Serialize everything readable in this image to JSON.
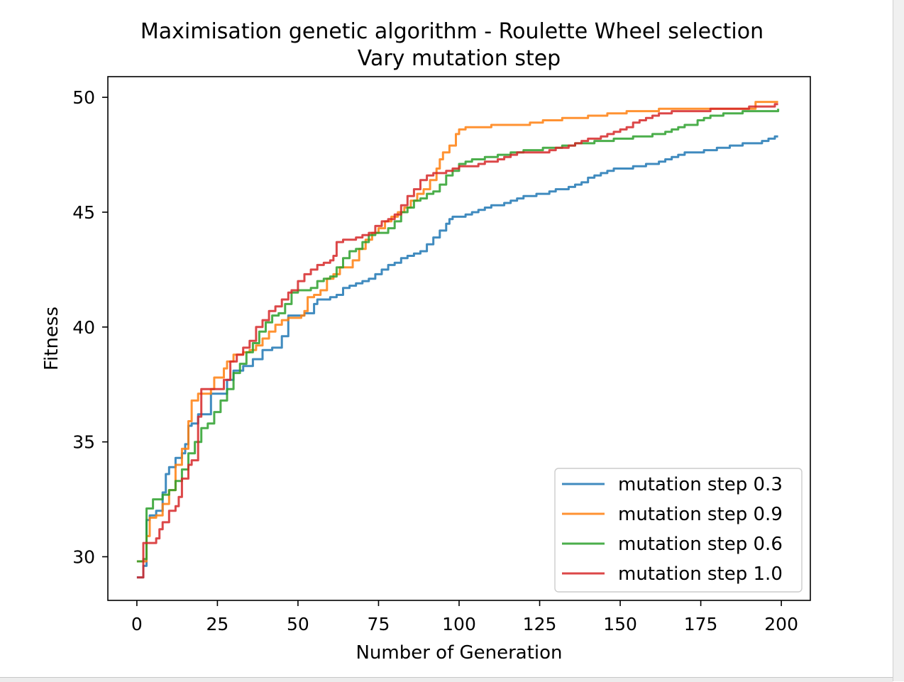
{
  "chart_data": {
    "type": "line",
    "title": "Maximisation genetic algorithm - Roulette Wheel selection",
    "subtitle": "Vary mutation step",
    "xlabel": "Number of Generation",
    "ylabel": "Fitness",
    "xlim": [
      -9,
      209
    ],
    "ylim": [
      28.1,
      50.9
    ],
    "xticks": [
      0,
      25,
      50,
      75,
      100,
      125,
      150,
      175,
      200
    ],
    "yticks": [
      30,
      35,
      40,
      45,
      50
    ],
    "grid": false,
    "legend_position": "lower right",
    "series": [
      {
        "name": "mutation step 0.3",
        "color": "#1f77b4",
        "x": [
          0,
          2,
          3,
          4,
          6,
          8,
          9,
          10,
          12,
          14,
          15,
          16,
          17,
          19,
          21,
          23,
          25,
          28,
          30,
          33,
          36,
          39,
          42,
          45,
          47,
          48,
          50,
          52,
          55,
          56,
          58,
          60,
          62,
          64,
          66,
          68,
          70,
          72,
          74,
          76,
          78,
          80,
          82,
          84,
          86,
          88,
          90,
          92,
          94,
          96,
          97,
          98,
          100,
          102,
          104,
          106,
          108,
          110,
          112,
          114,
          116,
          118,
          120,
          122,
          124,
          126,
          128,
          130,
          132,
          134,
          136,
          138,
          140,
          142,
          144,
          146,
          148,
          150,
          152,
          154,
          156,
          158,
          160,
          162,
          164,
          166,
          168,
          170,
          172,
          174,
          176,
          178,
          180,
          182,
          184,
          186,
          188,
          190,
          192,
          194,
          196,
          198,
          199
        ],
        "y": [
          29.1,
          29.6,
          31.6,
          31.8,
          32.0,
          32.8,
          33.6,
          33.9,
          34.3,
          34.5,
          34.9,
          35.7,
          35.8,
          36.2,
          36.2,
          37.1,
          37.1,
          37.7,
          38.1,
          38.3,
          38.6,
          39.0,
          39.1,
          39.6,
          40.5,
          40.5,
          40.5,
          40.6,
          41.0,
          41.2,
          41.2,
          41.3,
          41.4,
          41.7,
          41.8,
          41.9,
          42.0,
          42.1,
          42.3,
          42.5,
          42.7,
          42.8,
          43.0,
          43.1,
          43.2,
          43.3,
          43.6,
          43.9,
          44.2,
          44.5,
          44.7,
          44.8,
          44.8,
          44.9,
          45.0,
          45.1,
          45.2,
          45.3,
          45.3,
          45.4,
          45.5,
          45.6,
          45.7,
          45.7,
          45.8,
          45.8,
          45.9,
          46.0,
          46.0,
          46.1,
          46.2,
          46.3,
          46.5,
          46.6,
          46.7,
          46.8,
          46.9,
          46.9,
          46.9,
          47.0,
          47.0,
          47.1,
          47.1,
          47.2,
          47.3,
          47.4,
          47.5,
          47.6,
          47.6,
          47.6,
          47.7,
          47.7,
          47.8,
          47.8,
          47.9,
          47.9,
          48.0,
          48.0,
          48.0,
          48.1,
          48.2,
          48.3,
          48.3
        ]
      },
      {
        "name": "mutation step 0.9",
        "color": "#ff7f0e",
        "x": [
          0,
          2,
          3,
          4,
          6,
          8,
          10,
          12,
          14,
          16,
          17,
          19,
          21,
          23,
          24,
          25,
          27,
          28,
          30,
          33,
          35,
          37,
          39,
          41,
          43,
          45,
          47,
          49,
          51,
          52,
          53,
          55,
          57,
          59,
          61,
          63,
          65,
          67,
          69,
          71,
          73,
          75,
          77,
          79,
          81,
          83,
          85,
          87,
          89,
          91,
          93,
          94,
          95,
          97,
          99,
          100,
          102,
          104,
          106,
          108,
          110,
          112,
          114,
          116,
          118,
          120,
          122,
          124,
          126,
          128,
          130,
          132,
          134,
          136,
          138,
          140,
          142,
          144,
          146,
          148,
          150,
          152,
          154,
          156,
          158,
          160,
          162,
          164,
          166,
          168,
          170,
          172,
          174,
          176,
          178,
          180,
          182,
          184,
          186,
          188,
          190,
          192,
          194,
          196,
          198,
          199
        ],
        "y": [
          29.8,
          29.8,
          30.9,
          31.7,
          31.8,
          32.3,
          32.9,
          34.0,
          34.7,
          35.9,
          36.8,
          37.1,
          37.1,
          37.3,
          37.8,
          37.8,
          38.2,
          38.5,
          38.8,
          38.9,
          39.0,
          39.2,
          39.5,
          39.8,
          40.1,
          40.3,
          40.4,
          40.4,
          40.5,
          40.7,
          41.3,
          41.4,
          41.6,
          42.1,
          42.3,
          42.6,
          42.6,
          42.9,
          43.4,
          43.8,
          44.1,
          44.3,
          44.6,
          44.8,
          45.0,
          45.2,
          45.5,
          45.8,
          46.0,
          46.4,
          46.9,
          47.3,
          47.6,
          47.9,
          48.4,
          48.6,
          48.7,
          48.7,
          48.7,
          48.7,
          48.8,
          48.8,
          48.8,
          48.8,
          48.8,
          48.8,
          48.9,
          48.9,
          49.0,
          49.0,
          49.0,
          49.1,
          49.1,
          49.1,
          49.1,
          49.2,
          49.2,
          49.2,
          49.3,
          49.3,
          49.3,
          49.4,
          49.4,
          49.4,
          49.4,
          49.4,
          49.5,
          49.5,
          49.5,
          49.5,
          49.5,
          49.5,
          49.5,
          49.5,
          49.5,
          49.5,
          49.5,
          49.5,
          49.5,
          49.5,
          49.5,
          49.8,
          49.8,
          49.8,
          49.8,
          49.8
        ]
      },
      {
        "name": "mutation step 0.6",
        "color": "#2ca02c",
        "x": [
          0,
          2,
          3,
          5,
          6,
          8,
          10,
          12,
          14,
          16,
          18,
          20,
          22,
          24,
          26,
          28,
          30,
          32,
          34,
          36,
          38,
          40,
          42,
          44,
          46,
          48,
          50,
          52,
          54,
          56,
          58,
          60,
          62,
          64,
          66,
          68,
          70,
          72,
          74,
          76,
          78,
          80,
          82,
          84,
          86,
          88,
          90,
          92,
          94,
          96,
          98,
          100,
          102,
          104,
          106,
          108,
          110,
          112,
          114,
          116,
          118,
          120,
          122,
          124,
          126,
          128,
          130,
          132,
          134,
          136,
          138,
          140,
          142,
          144,
          146,
          148,
          150,
          152,
          154,
          156,
          158,
          160,
          162,
          164,
          166,
          168,
          170,
          172,
          174,
          176,
          178,
          180,
          182,
          184,
          186,
          188,
          190,
          192,
          194,
          196,
          198,
          199
        ],
        "y": [
          29.8,
          29.9,
          32.1,
          32.5,
          32.5,
          32.7,
          32.9,
          33.3,
          33.8,
          34.5,
          35.0,
          35.6,
          35.8,
          36.3,
          36.8,
          37.3,
          38.0,
          38.4,
          38.9,
          39.3,
          39.8,
          40.2,
          40.5,
          40.6,
          41.0,
          41.5,
          41.6,
          41.6,
          41.7,
          42.0,
          42.1,
          42.2,
          42.6,
          43.0,
          43.3,
          43.4,
          43.7,
          44.0,
          44.1,
          44.1,
          44.3,
          44.6,
          45.0,
          45.2,
          45.5,
          45.6,
          45.8,
          45.9,
          46.2,
          46.6,
          46.8,
          47.1,
          47.2,
          47.3,
          47.3,
          47.4,
          47.4,
          47.5,
          47.5,
          47.6,
          47.6,
          47.7,
          47.7,
          47.7,
          47.8,
          47.8,
          47.8,
          47.9,
          47.9,
          48.0,
          48.0,
          48.0,
          48.1,
          48.1,
          48.1,
          48.2,
          48.2,
          48.2,
          48.3,
          48.3,
          48.3,
          48.4,
          48.4,
          48.5,
          48.6,
          48.7,
          48.8,
          48.8,
          49.0,
          49.1,
          49.2,
          49.2,
          49.3,
          49.3,
          49.3,
          49.4,
          49.4,
          49.4,
          49.4,
          49.4,
          49.4,
          49.5
        ]
      },
      {
        "name": "mutation step 1.0",
        "color": "#d62728",
        "x": [
          0,
          2,
          3,
          4,
          6,
          7,
          8,
          10,
          12,
          13,
          14,
          16,
          17,
          19,
          20,
          21,
          23,
          25,
          27,
          29,
          31,
          33,
          35,
          37,
          39,
          41,
          43,
          45,
          47,
          48,
          50,
          52,
          54,
          56,
          58,
          60,
          61,
          62,
          64,
          66,
          68,
          70,
          72,
          74,
          76,
          78,
          80,
          82,
          84,
          86,
          88,
          90,
          92,
          94,
          96,
          98,
          100,
          102,
          104,
          106,
          108,
          110,
          112,
          114,
          116,
          118,
          120,
          122,
          124,
          126,
          128,
          130,
          132,
          134,
          136,
          138,
          140,
          142,
          144,
          146,
          148,
          150,
          152,
          154,
          156,
          158,
          160,
          162,
          164,
          166,
          168,
          170,
          172,
          174,
          176,
          178,
          180,
          182,
          184,
          186,
          188,
          190,
          192,
          194,
          196,
          198,
          199
        ],
        "y": [
          29.1,
          30.6,
          30.6,
          30.6,
          30.8,
          31.2,
          31.5,
          32.0,
          32.2,
          32.6,
          33.4,
          34.0,
          34.2,
          36.1,
          37.3,
          37.3,
          37.3,
          37.3,
          37.7,
          38.5,
          38.8,
          39.1,
          39.4,
          40.0,
          40.3,
          40.7,
          40.9,
          41.2,
          41.5,
          41.6,
          42.0,
          42.3,
          42.5,
          42.7,
          42.8,
          42.9,
          43.1,
          43.7,
          43.8,
          43.8,
          43.9,
          44.0,
          44.1,
          44.4,
          44.6,
          44.7,
          44.9,
          45.3,
          45.7,
          46.0,
          46.4,
          46.6,
          46.7,
          46.7,
          46.8,
          46.9,
          47.0,
          47.0,
          47.0,
          47.1,
          47.2,
          47.2,
          47.3,
          47.4,
          47.5,
          47.6,
          47.6,
          47.6,
          47.6,
          47.6,
          47.7,
          47.8,
          47.8,
          47.9,
          48.0,
          48.1,
          48.2,
          48.2,
          48.3,
          48.4,
          48.5,
          48.6,
          48.7,
          48.9,
          49.0,
          49.1,
          49.2,
          49.3,
          49.3,
          49.4,
          49.4,
          49.4,
          49.4,
          49.4,
          49.4,
          49.5,
          49.5,
          49.5,
          49.5,
          49.5,
          49.5,
          49.6,
          49.6,
          49.6,
          49.6,
          49.7,
          49.7
        ]
      }
    ]
  }
}
